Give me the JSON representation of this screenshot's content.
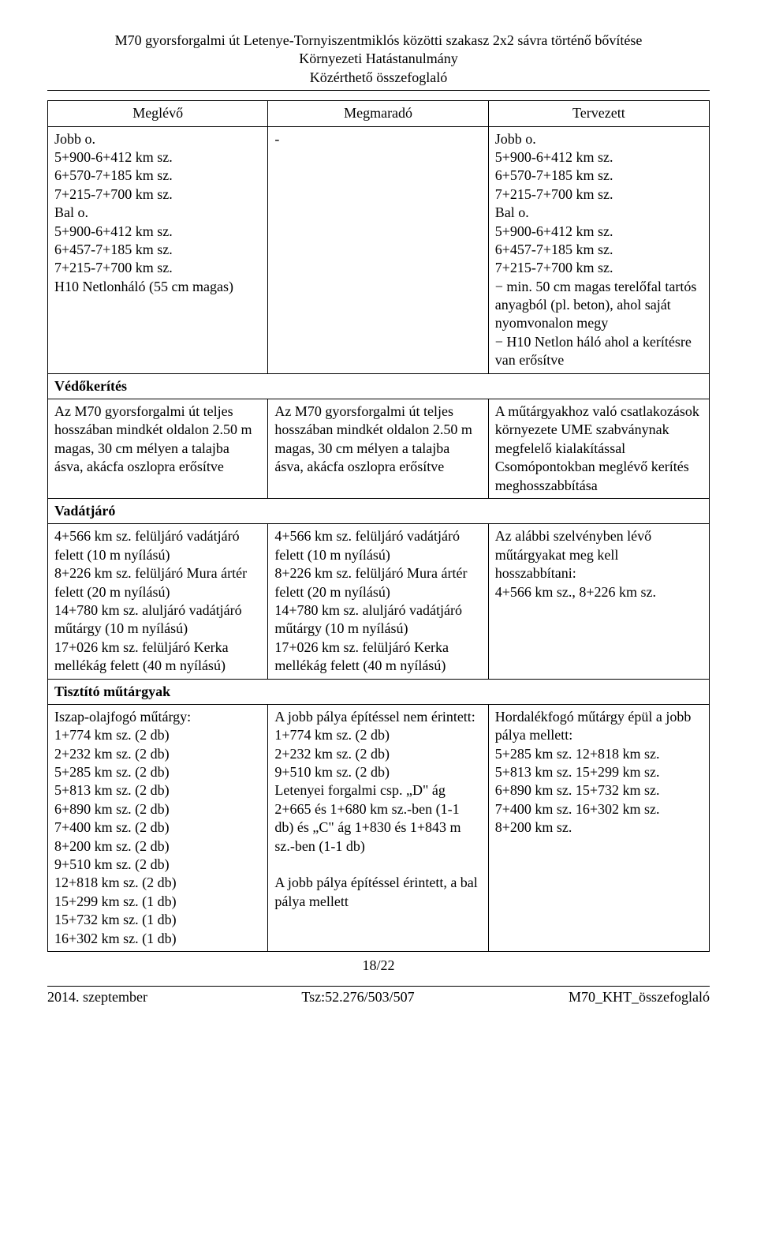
{
  "header": {
    "line1": "M70 gyorsforgalmi út Letenye-Tornyiszentmiklós közötti szakasz 2x2 sávra történő bővítése",
    "line2": "Környezeti Hatástanulmány",
    "line3": "Közérthető összefoglaló"
  },
  "table": {
    "headers": [
      "Meglévő",
      "Megmaradó",
      "Tervezett"
    ],
    "row1": {
      "c1": "Jobb o.\n5+900-6+412 km sz.\n6+570-7+185 km sz.\n7+215-7+700 km sz.\nBal o.\n5+900-6+412 km sz.\n6+457-7+185 km sz.\n7+215-7+700 km sz.\nH10 Netlonháló (55 cm magas)",
      "c2": "-",
      "c3": "Jobb o.\n5+900-6+412 km sz.\n6+570-7+185 km sz.\n7+215-7+700 km sz.\nBal o.\n5+900-6+412 km sz.\n6+457-7+185 km sz.\n7+215-7+700 km sz.\n− min. 50 cm magas terelőfal tartós anyagból (pl. beton), ahol saját nyomvonalon megy\n− H10 Netlon háló ahol a kerítésre van erősítve"
    },
    "section2": "Védőkerítés",
    "row2": {
      "c1": "Az M70 gyorsforgalmi út teljes hosszában mindkét oldalon 2.50 m magas, 30 cm mélyen a talajba ásva, akácfa oszlopra erősítve",
      "c2": "Az M70 gyorsforgalmi út teljes hosszában mindkét oldalon 2.50 m magas, 30 cm mélyen a talajba ásva, akácfa oszlopra erősítve",
      "c3": "A műtárgyakhoz való csatlakozások környezete UME szabványnak megfelelő kialakítással\nCsomópontokban meglévő kerítés meghosszabbítása"
    },
    "section3": "Vadátjáró",
    "row3": {
      "c1": "4+566 km sz. felüljáró vadátjáró felett (10 m nyílású)\n8+226 km sz. felüljáró Mura ártér felett (20 m nyílású)\n14+780 km sz. aluljáró vadátjáró műtárgy (10 m nyílású)\n17+026 km sz. felüljáró Kerka mellékág felett (40 m nyílású)",
      "c2": "4+566 km sz. felüljáró vadátjáró felett (10 m nyílású)\n8+226 km sz. felüljáró Mura ártér felett (20 m nyílású)\n14+780 km sz. aluljáró vadátjáró műtárgy (10 m nyílású)\n17+026 km sz. felüljáró Kerka mellékág felett (40 m nyílású)",
      "c3": "Az alábbi szelvényben lévő műtárgyakat meg kell hosszabbítani:\n4+566 km sz., 8+226 km sz."
    },
    "section4": "Tisztító műtárgyak",
    "row4": {
      "c1": "Iszap-olajfogó műtárgy:\n1+774 km sz. (2 db)\n2+232 km sz. (2 db)\n5+285 km sz. (2 db)\n5+813 km sz. (2 db)\n6+890 km sz. (2 db)\n7+400 km sz. (2 db)\n8+200 km sz. (2 db)\n9+510 km sz. (2 db)\n12+818 km sz. (2 db)\n15+299 km sz. (1 db)\n15+732 km sz. (1 db)\n16+302 km sz. (1 db)",
      "c2": "A jobb pálya építéssel nem érintett:\n1+774 km sz. (2 db)\n2+232 km sz. (2 db)\n9+510 km sz. (2 db)\nLetenyei forgalmi csp. „D\" ág\n2+665 és 1+680 km sz.-ben (1-1 db) és „C\" ág 1+830 és 1+843 m sz.-ben (1-1 db)\n\nA jobb pálya építéssel érintett, a bal pálya mellett",
      "c3": "Hordalékfogó műtárgy épül a jobb pálya mellett:\n5+285 km sz.  12+818 km sz.\n5+813 km sz.  15+299 km sz.\n6+890 km sz.  15+732 km sz.\n7+400 km sz.  16+302 km sz.\n8+200 km sz."
    }
  },
  "footer": {
    "pagenum": "18/22",
    "left": "2014. szeptember",
    "center": "Tsz:52.276/503/507",
    "right": "M70_KHT_összefoglaló"
  }
}
